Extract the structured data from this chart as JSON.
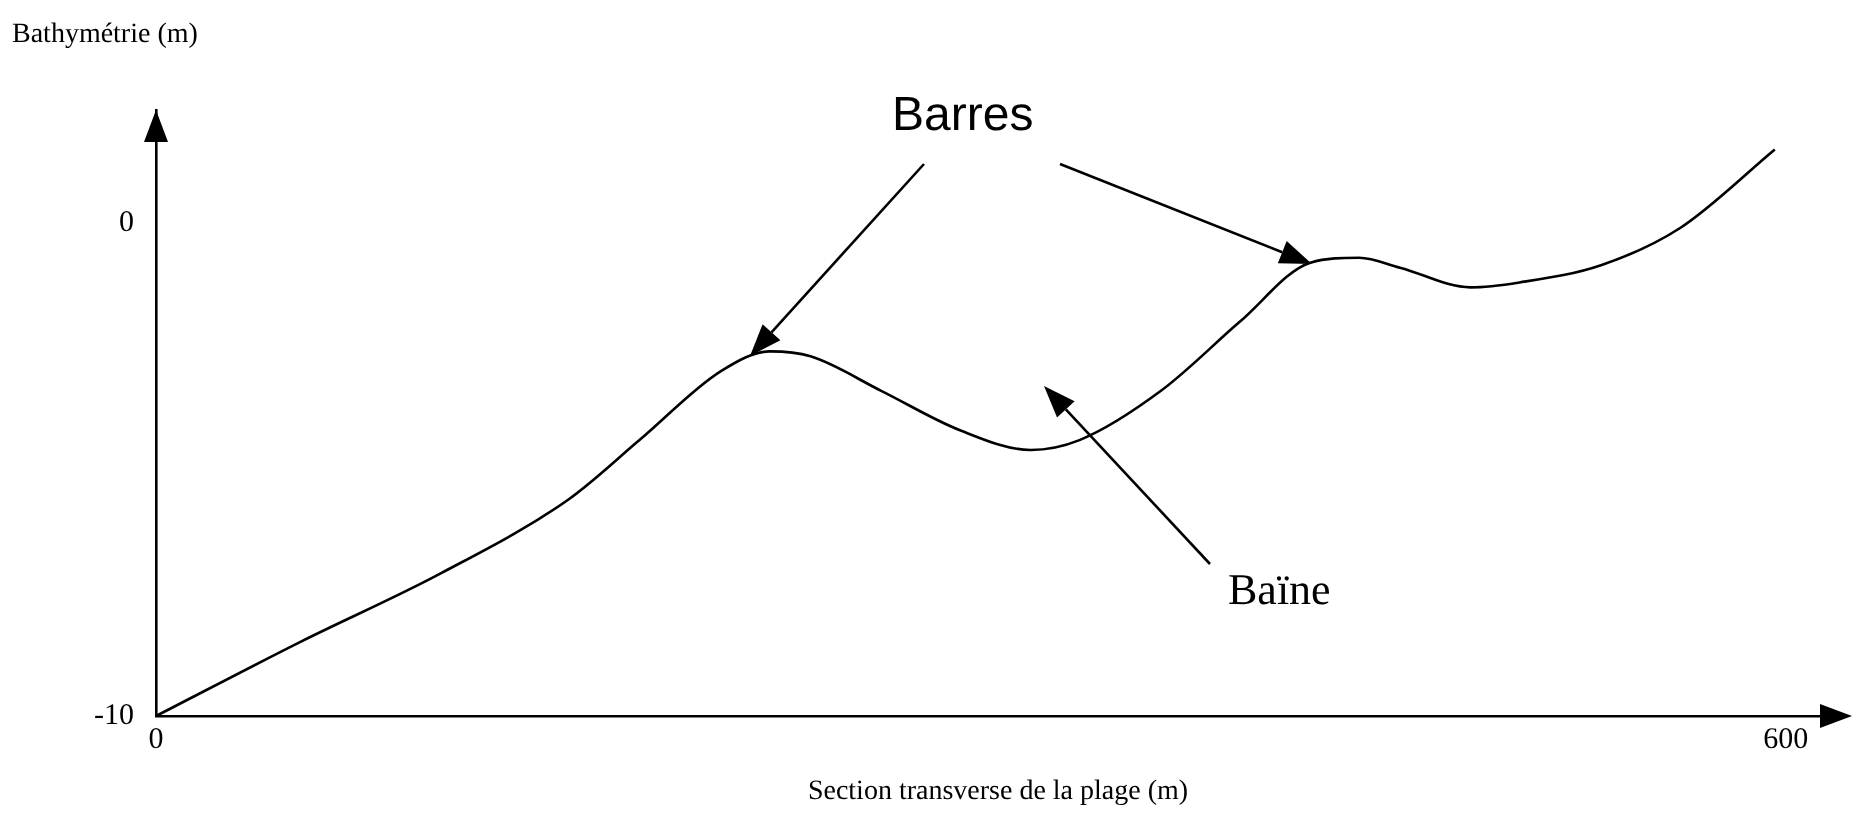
{
  "chart_data": {
    "type": "line",
    "xlabel": "Section transverse de la plage (m)",
    "ylabel": "Bathymétrie (m)",
    "x": [
      0,
      53,
      105,
      152,
      178,
      208,
      226,
      241,
      267,
      296,
      322,
      340,
      370,
      399,
      425,
      443,
      458,
      484,
      502,
      532,
      561,
      596
    ],
    "series": [
      {
        "color": "#000000",
        "values": [
          -10,
          -8.5,
          -7.1,
          -5.6,
          -4.4,
          -3.0,
          -2.6,
          -2.7,
          -3.4,
          -4.2,
          -4.6,
          -4.4,
          -3.4,
          -2.0,
          -0.8,
          -0.7,
          -0.9,
          -1.3,
          -1.2,
          -0.85,
          -0.1,
          1.5
        ]
      }
    ],
    "xlim": [
      0,
      620
    ],
    "xticks": [
      0,
      600
    ],
    "ylim": [
      -10,
      2.3
    ],
    "yticks": [
      -10,
      0
    ],
    "grid": false,
    "legend": false,
    "marker": "none",
    "line_style": "solid",
    "annotations": [
      "Barres",
      "Baïne"
    ]
  }
}
